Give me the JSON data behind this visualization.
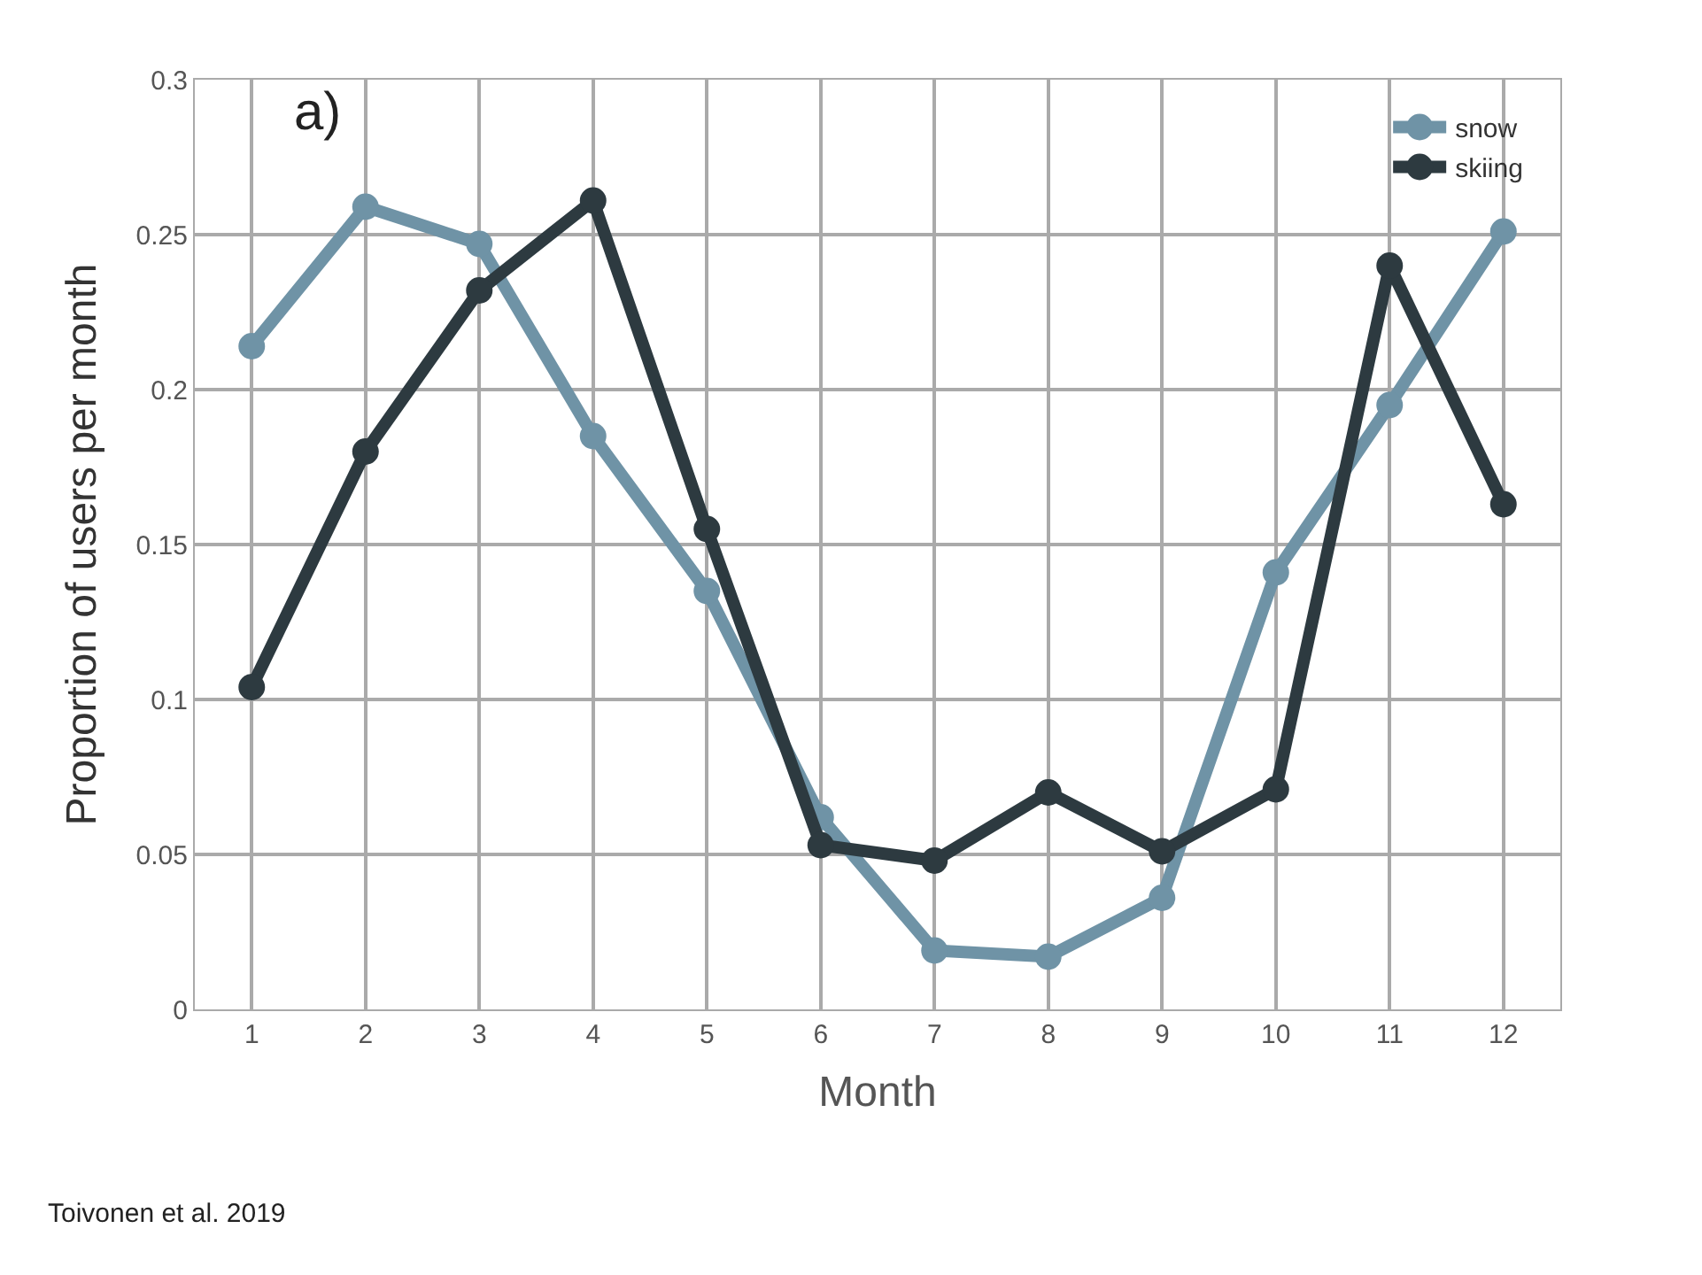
{
  "chart_data": {
    "type": "line",
    "xlabel": "Month",
    "ylabel": "Proportion of users per month",
    "x": [
      1,
      2,
      3,
      4,
      5,
      6,
      7,
      8,
      9,
      10,
      11,
      12
    ],
    "series": [
      {
        "name": "snow",
        "color": "#6f93a6",
        "values": [
          0.214,
          0.259,
          0.247,
          0.185,
          0.135,
          0.062,
          0.019,
          0.017,
          0.036,
          0.141,
          0.195,
          0.251
        ]
      },
      {
        "name": "skiing",
        "color": "#2d3a40",
        "values": [
          0.104,
          0.18,
          0.232,
          0.261,
          0.155,
          0.053,
          0.048,
          0.07,
          0.051,
          0.071,
          0.24,
          0.163
        ]
      }
    ],
    "xlim": [
      0.5,
      12.5
    ],
    "xticks": [
      1,
      2,
      3,
      4,
      5,
      6,
      7,
      8,
      9,
      10,
      11,
      12
    ],
    "ylim": [
      0,
      0.3
    ],
    "yticks": [
      0,
      0.05,
      0.1,
      0.15,
      0.2,
      0.25,
      0.3
    ],
    "annotations": [
      "a)",
      "Toivonen et al. 2019"
    ],
    "grid": true,
    "legend": "top right",
    "marker": "circle",
    "line_style": "solid"
  }
}
